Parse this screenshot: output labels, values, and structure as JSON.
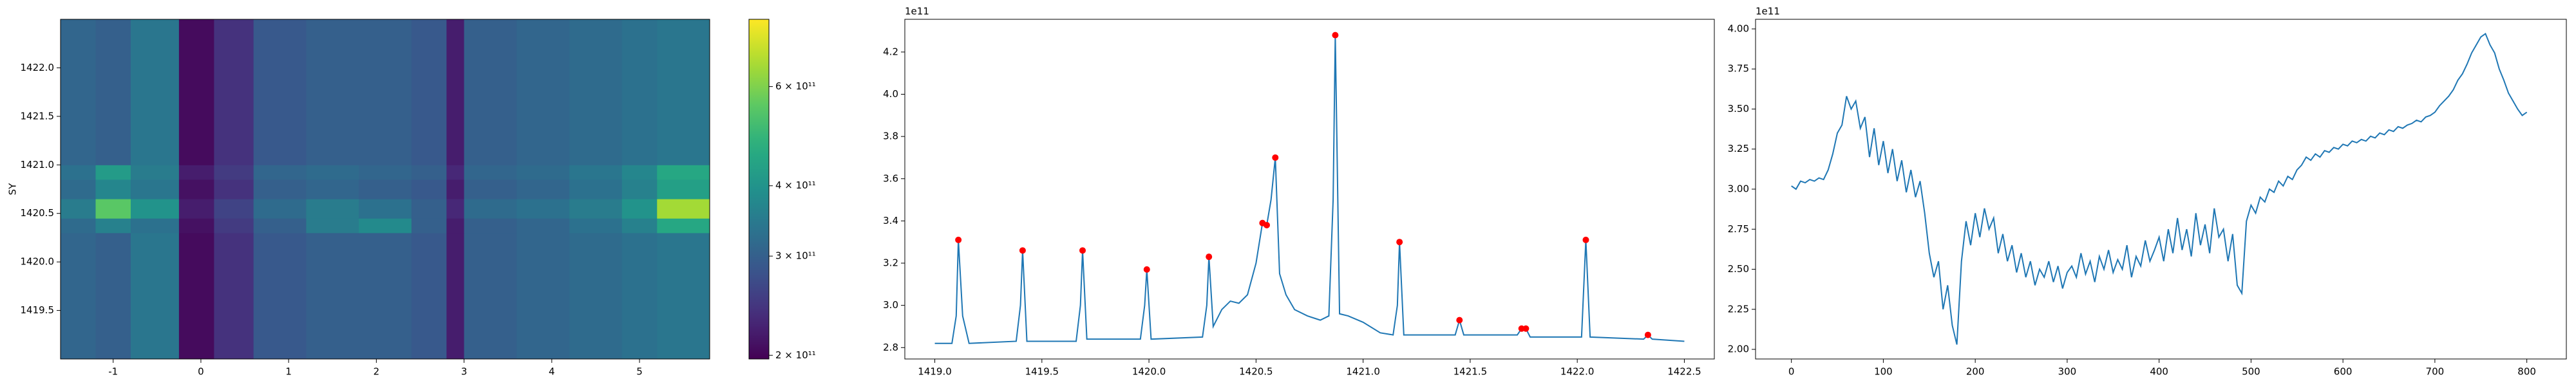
{
  "chart_data": [
    {
      "type": "heatmap",
      "ylabel": "SY",
      "x_edges": [
        -1.6,
        -1.2,
        -0.8,
        -0.25,
        0.15,
        0.6,
        1.2,
        1.8,
        2.4,
        2.8,
        3.0,
        3.6,
        4.2,
        4.8,
        5.2,
        5.8
      ],
      "y_edges": [
        1419.0,
        1420.3,
        1420.45,
        1420.65,
        1420.85,
        1421.0,
        1422.5
      ],
      "z": [
        [
          310000000000.0,
          300000000000.0,
          340000000000.0,
          205000000000.0,
          240000000000.0,
          290000000000.0,
          300000000000.0,
          300000000000.0,
          290000000000.0,
          220000000000.0,
          300000000000.0,
          310000000000.0,
          320000000000.0,
          330000000000.0,
          340000000000.0
        ],
        [
          320000000000.0,
          360000000000.0,
          330000000000.0,
          210000000000.0,
          250000000000.0,
          300000000000.0,
          350000000000.0,
          380000000000.0,
          300000000000.0,
          220000000000.0,
          300000000000.0,
          310000000000.0,
          330000000000.0,
          360000000000.0,
          450000000000.0
        ],
        [
          350000000000.0,
          550000000000.0,
          400000000000.0,
          220000000000.0,
          260000000000.0,
          320000000000.0,
          350000000000.0,
          330000000000.0,
          300000000000.0,
          230000000000.0,
          320000000000.0,
          330000000000.0,
          350000000000.0,
          400000000000.0,
          650000000000.0
        ],
        [
          320000000000.0,
          370000000000.0,
          340000000000.0,
          210000000000.0,
          240000000000.0,
          300000000000.0,
          310000000000.0,
          300000000000.0,
          290000000000.0,
          220000000000.0,
          300000000000.0,
          310000000000.0,
          330000000000.0,
          360000000000.0,
          430000000000.0
        ],
        [
          330000000000.0,
          420000000000.0,
          350000000000.0,
          220000000000.0,
          250000000000.0,
          310000000000.0,
          320000000000.0,
          310000000000.0,
          300000000000.0,
          230000000000.0,
          310000000000.0,
          320000000000.0,
          340000000000.0,
          370000000000.0,
          450000000000.0
        ],
        [
          310000000000.0,
          300000000000.0,
          340000000000.0,
          205000000000.0,
          240000000000.0,
          290000000000.0,
          300000000000.0,
          300000000000.0,
          290000000000.0,
          220000000000.0,
          300000000000.0,
          310000000000.0,
          320000000000.0,
          330000000000.0,
          340000000000.0
        ]
      ],
      "xlim": [
        -1.6,
        5.8
      ],
      "xticks": [
        -1,
        0,
        1,
        2,
        3,
        4,
        5
      ],
      "ylim": [
        1419.0,
        1422.5
      ],
      "yticks": [
        1419.5,
        {
          "value": 1420.0,
          "label": "1420.0"
        },
        1420.5,
        {
          "value": 1421.0,
          "label": "1421.0"
        },
        1421.5,
        {
          "value": 1422.0,
          "label": "1422.0"
        }
      ],
      "colormap": "viridis",
      "color_scale": "log",
      "clim": [
        197000000000.0,
        790000000000.0
      ],
      "cticks": [
        {
          "value": 200000000000.0,
          "label": "2 × 10¹¹"
        },
        {
          "value": 300000000000.0,
          "label": "3 × 10¹¹"
        },
        {
          "value": 400000000000.0,
          "label": "4 × 10¹¹"
        },
        {
          "value": 600000000000.0,
          "label": "6 × 10¹¹"
        }
      ]
    },
    {
      "type": "line",
      "offset_text": "1e11",
      "color": "#1f77b4",
      "x": [
        1419.0,
        1419.08,
        1419.1,
        1419.11,
        1419.13,
        1419.16,
        1419.38,
        1419.4,
        1419.41,
        1419.43,
        1419.66,
        1419.68,
        1419.69,
        1419.71,
        1419.96,
        1419.98,
        1419.99,
        1420.01,
        1420.25,
        1420.27,
        1420.28,
        1420.3,
        1420.34,
        1420.38,
        1420.42,
        1420.46,
        1420.5,
        1420.53,
        1420.55,
        1420.57,
        1420.59,
        1420.61,
        1420.64,
        1420.68,
        1420.74,
        1420.8,
        1420.84,
        1420.86,
        1420.87,
        1420.89,
        1420.93,
        1421.0,
        1421.08,
        1421.14,
        1421.16,
        1421.17,
        1421.19,
        1421.43,
        1421.45,
        1421.47,
        1421.72,
        1421.74,
        1421.76,
        1421.78,
        1422.02,
        1422.04,
        1422.06,
        1422.31,
        1422.33,
        1422.35,
        1422.5
      ],
      "values": [
        2.82,
        2.82,
        2.95,
        3.31,
        2.95,
        2.82,
        2.83,
        3.0,
        3.26,
        2.83,
        2.83,
        3.0,
        3.26,
        2.84,
        2.84,
        3.0,
        3.17,
        2.84,
        2.85,
        3.0,
        3.23,
        2.9,
        2.98,
        3.02,
        3.01,
        3.05,
        3.2,
        3.39,
        3.38,
        3.5,
        3.7,
        3.15,
        3.05,
        2.98,
        2.95,
        2.93,
        2.95,
        3.5,
        4.28,
        2.96,
        2.95,
        2.92,
        2.87,
        2.86,
        3.0,
        3.3,
        2.86,
        2.86,
        2.93,
        2.86,
        2.86,
        2.89,
        2.89,
        2.85,
        2.85,
        3.31,
        2.85,
        2.84,
        2.86,
        2.84,
        2.83
      ],
      "markers": {
        "color": "#ff0000",
        "x": [
          1419.11,
          1419.41,
          1419.69,
          1419.99,
          1420.28,
          1420.53,
          1420.55,
          1420.59,
          1420.87,
          1421.17,
          1421.45,
          1421.74,
          1421.76,
          1422.04,
          1422.33
        ],
        "values": [
          3.31,
          3.26,
          3.26,
          3.17,
          3.23,
          3.39,
          3.38,
          3.7,
          4.28,
          3.3,
          2.93,
          2.89,
          2.89,
          3.31,
          2.86
        ]
      },
      "xlim": [
        1418.86,
        1422.64
      ],
      "xticks": [
        {
          "value": 1419.0,
          "label": "1419.0"
        },
        1419.5,
        {
          "value": 1420.0,
          "label": "1420.0"
        },
        1420.5,
        {
          "value": 1421.0,
          "label": "1421.0"
        },
        1421.5,
        {
          "value": 1422.0,
          "label": "1422.0"
        },
        1422.5
      ],
      "ylim": [
        2.746,
        4.355
      ],
      "yticks": [
        2.8,
        {
          "value": 3.0,
          "label": "3.0"
        },
        3.2,
        3.4,
        3.6,
        3.8,
        {
          "value": 4.0,
          "label": "4.0"
        },
        4.2
      ]
    },
    {
      "type": "line",
      "offset_text": "1e11",
      "color": "#1f77b4",
      "x": [
        0,
        5,
        10,
        15,
        20,
        25,
        30,
        35,
        40,
        45,
        50,
        55,
        60,
        65,
        70,
        75,
        80,
        85,
        90,
        95,
        100,
        105,
        110,
        115,
        120,
        125,
        130,
        135,
        140,
        145,
        150,
        155,
        160,
        165,
        170,
        175,
        180,
        185,
        190,
        195,
        200,
        205,
        210,
        215,
        220,
        225,
        230,
        235,
        240,
        245,
        250,
        255,
        260,
        265,
        270,
        275,
        280,
        285,
        290,
        295,
        300,
        305,
        310,
        315,
        320,
        325,
        330,
        335,
        340,
        345,
        350,
        355,
        360,
        365,
        370,
        375,
        380,
        385,
        390,
        395,
        400,
        405,
        410,
        415,
        420,
        425,
        430,
        435,
        440,
        445,
        450,
        455,
        460,
        465,
        470,
        475,
        480,
        485,
        490,
        495,
        500,
        505,
        510,
        515,
        520,
        525,
        530,
        535,
        540,
        545,
        550,
        555,
        560,
        565,
        570,
        575,
        580,
        585,
        590,
        595,
        600,
        605,
        610,
        615,
        620,
        625,
        630,
        635,
        640,
        645,
        650,
        655,
        660,
        665,
        670,
        675,
        680,
        685,
        690,
        695,
        700,
        705,
        710,
        715,
        720,
        725,
        730,
        735,
        740,
        745,
        750,
        755,
        760,
        765,
        770,
        775,
        780,
        785,
        790,
        795,
        800
      ],
      "values": [
        3.02,
        3.0,
        3.05,
        3.04,
        3.06,
        3.05,
        3.07,
        3.06,
        3.12,
        3.22,
        3.35,
        3.4,
        3.58,
        3.5,
        3.55,
        3.38,
        3.45,
        3.2,
        3.38,
        3.15,
        3.3,
        3.1,
        3.25,
        3.05,
        3.18,
        2.98,
        3.12,
        2.95,
        3.05,
        2.85,
        2.6,
        2.45,
        2.55,
        2.25,
        2.4,
        2.15,
        2.03,
        2.55,
        2.8,
        2.65,
        2.85,
        2.7,
        2.88,
        2.75,
        2.82,
        2.6,
        2.72,
        2.55,
        2.65,
        2.48,
        2.6,
        2.45,
        2.55,
        2.4,
        2.5,
        2.45,
        2.55,
        2.42,
        2.52,
        2.38,
        2.48,
        2.52,
        2.45,
        2.6,
        2.47,
        2.55,
        2.42,
        2.58,
        2.5,
        2.62,
        2.48,
        2.56,
        2.5,
        2.65,
        2.45,
        2.58,
        2.52,
        2.68,
        2.55,
        2.62,
        2.7,
        2.55,
        2.75,
        2.6,
        2.82,
        2.62,
        2.75,
        2.58,
        2.85,
        2.65,
        2.78,
        2.6,
        2.88,
        2.7,
        2.75,
        2.55,
        2.72,
        2.4,
        2.35,
        2.8,
        2.9,
        2.85,
        2.95,
        2.92,
        3.0,
        2.98,
        3.05,
        3.02,
        3.08,
        3.06,
        3.12,
        3.15,
        3.2,
        3.18,
        3.22,
        3.2,
        3.24,
        3.23,
        3.26,
        3.25,
        3.28,
        3.27,
        3.3,
        3.29,
        3.31,
        3.3,
        3.33,
        3.32,
        3.35,
        3.34,
        3.37,
        3.36,
        3.39,
        3.38,
        3.4,
        3.41,
        3.43,
        3.42,
        3.45,
        3.46,
        3.48,
        3.52,
        3.55,
        3.58,
        3.62,
        3.68,
        3.72,
        3.78,
        3.85,
        3.9,
        3.95,
        3.97,
        3.9,
        3.85,
        3.75,
        3.68,
        3.6,
        3.55,
        3.5,
        3.46,
        3.48
      ],
      "xlim": [
        -39,
        843
      ],
      "xticks": [
        0,
        100,
        200,
        300,
        400,
        500,
        600,
        700,
        800
      ],
      "ylim": [
        1.94,
        4.06
      ],
      "yticks": [
        {
          "value": 2.0,
          "label": "2.00"
        },
        {
          "value": 2.25,
          "label": "2.25"
        },
        {
          "value": 2.5,
          "label": "2.50"
        },
        {
          "value": 2.75,
          "label": "2.75"
        },
        {
          "value": 3.0,
          "label": "3.00"
        },
        {
          "value": 3.25,
          "label": "3.25"
        },
        {
          "value": 3.5,
          "label": "3.50"
        },
        {
          "value": 3.75,
          "label": "3.75"
        },
        {
          "value": 4.0,
          "label": "4.00"
        }
      ]
    }
  ]
}
